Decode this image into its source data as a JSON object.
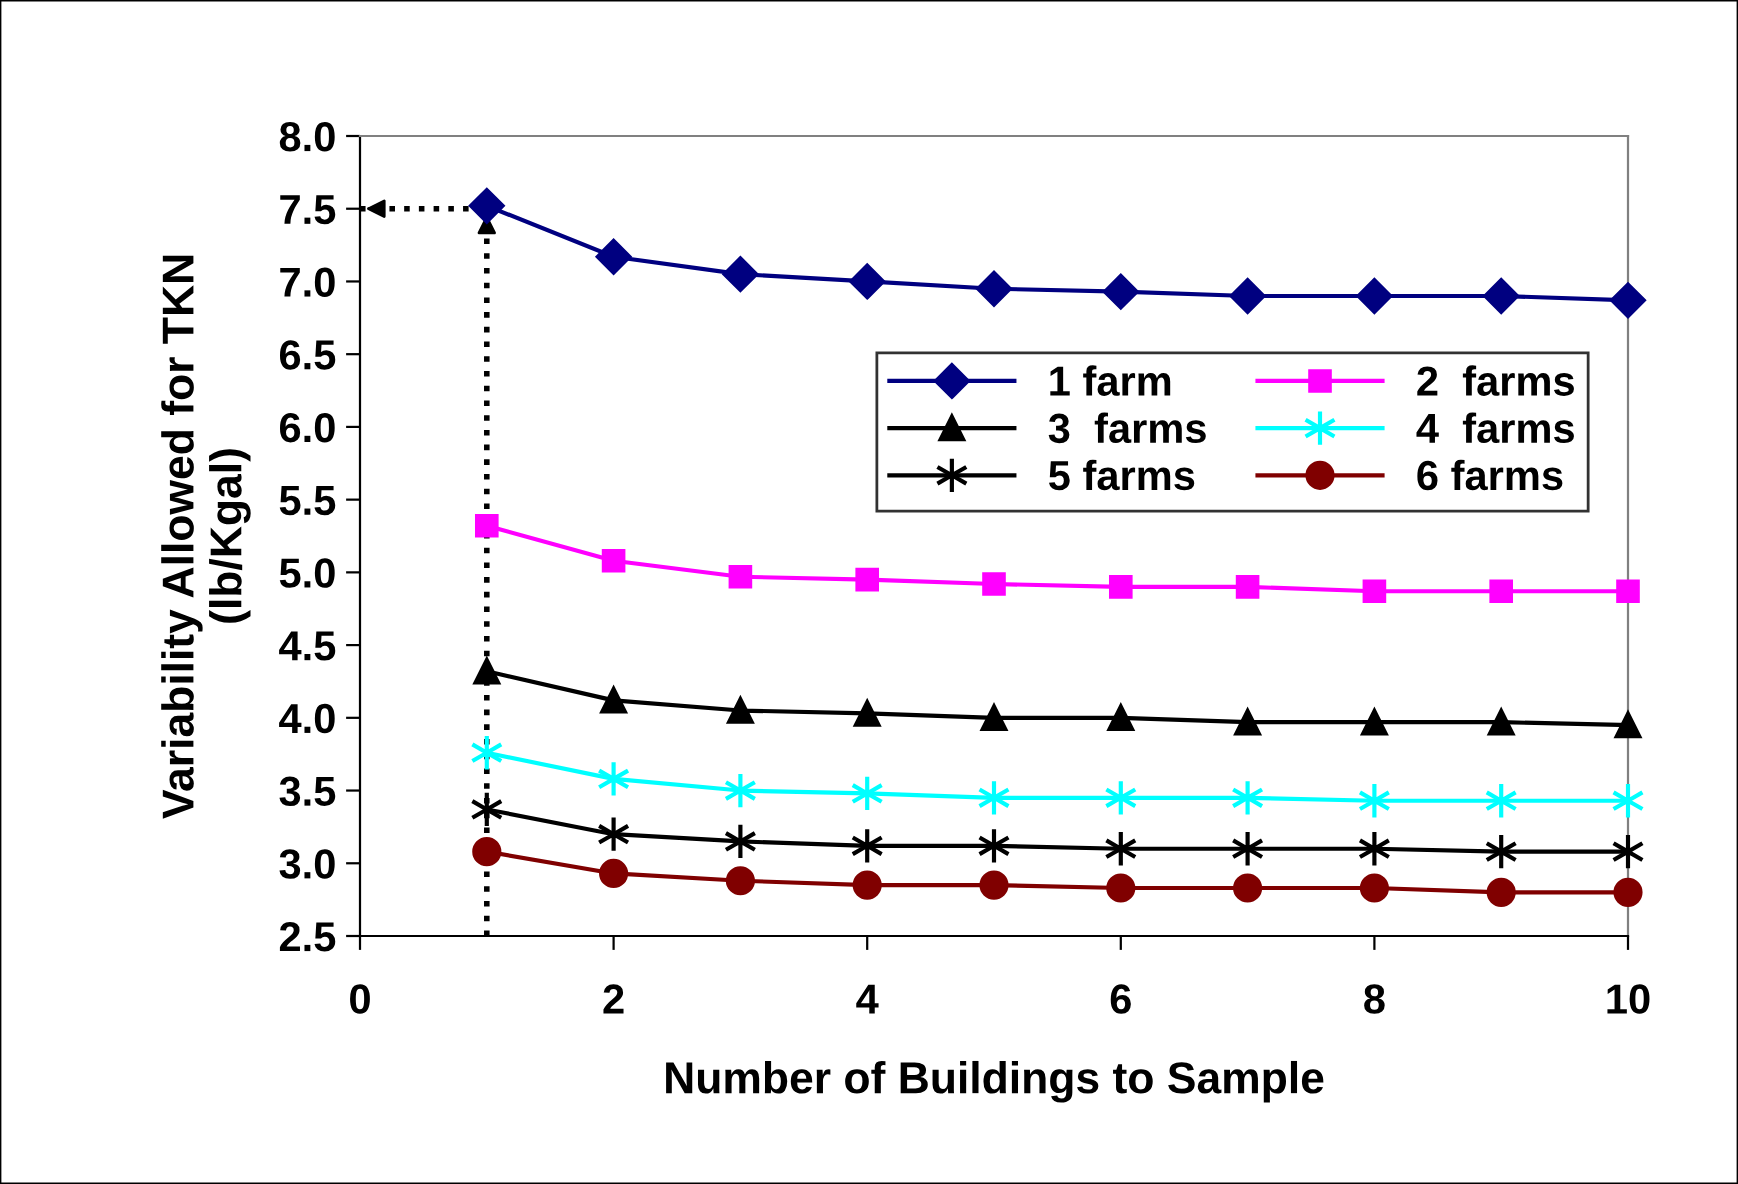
{
  "chart_data": {
    "type": "line",
    "xlabel": "Number of Buildings to Sample",
    "ylabel": "Variability Allowed for TKN\n(lb/Kgal)",
    "x": [
      1,
      2,
      3,
      4,
      5,
      6,
      7,
      8,
      9,
      10
    ],
    "series": [
      {
        "name": "1 farm",
        "color": "#000080",
        "marker": "diamond",
        "values": [
          7.52,
          7.17,
          7.05,
          7.0,
          6.95,
          6.93,
          6.9,
          6.9,
          6.9,
          6.87
        ]
      },
      {
        "name": "2  farms",
        "color": "#ff00ff",
        "marker": "square",
        "values": [
          5.32,
          5.08,
          4.97,
          4.95,
          4.92,
          4.9,
          4.9,
          4.87,
          4.87,
          4.87
        ]
      },
      {
        "name": "3  farms",
        "color": "#000000",
        "marker": "triangle",
        "values": [
          4.32,
          4.12,
          4.05,
          4.03,
          4.0,
          4.0,
          3.97,
          3.97,
          3.97,
          3.95
        ]
      },
      {
        "name": "4  farms",
        "color": "#00ffff",
        "marker": "cross",
        "values": [
          3.76,
          3.58,
          3.5,
          3.48,
          3.45,
          3.45,
          3.45,
          3.43,
          3.43,
          3.43
        ]
      },
      {
        "name": "5 farms",
        "color": "#000000",
        "marker": "cross",
        "values": [
          3.37,
          3.2,
          3.15,
          3.12,
          3.12,
          3.1,
          3.1,
          3.1,
          3.08,
          3.08
        ]
      },
      {
        "name": "6 farms",
        "color": "#800000",
        "marker": "circle",
        "values": [
          3.08,
          2.93,
          2.88,
          2.85,
          2.85,
          2.83,
          2.83,
          2.83,
          2.8,
          2.8
        ]
      }
    ],
    "xlim": [
      0,
      10
    ],
    "xticks": [
      0,
      2,
      4,
      6,
      8,
      10
    ],
    "ylim": [
      2.5,
      8.0
    ],
    "yticks": [
      2.5,
      {
        "value": 3,
        "label": "3.0"
      },
      3.5,
      {
        "value": 4,
        "label": "4.0"
      },
      4.5,
      {
        "value": 5,
        "label": "5.0"
      },
      5.5,
      {
        "value": 6,
        "label": "6.0"
      },
      6.5,
      {
        "value": 7,
        "label": "7.0"
      },
      7.5,
      {
        "value": 8,
        "label": "8.0"
      }
    ],
    "ref_lines": [
      {
        "axis": "x",
        "value": 1,
        "color": "#000000",
        "line_style": "dotted"
      },
      {
        "axis": "y",
        "value": 7.5,
        "color": "#000000",
        "line_style": "dotted"
      }
    ],
    "grid": false,
    "legend": "top right",
    "line_style": "solid"
  }
}
